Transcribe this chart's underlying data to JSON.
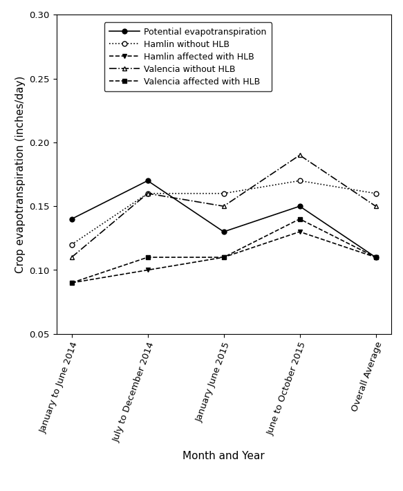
{
  "x_labels": [
    "January to June 2014",
    "July to December 2014",
    "January June 2015",
    "June to October 2015",
    "Overall Average"
  ],
  "series": {
    "Potential evapotranspiration": {
      "values": [
        0.14,
        0.17,
        0.13,
        0.15,
        0.11
      ],
      "linestyle": "-",
      "marker": "o",
      "markerfacecolor": "black",
      "color": "black",
      "linewidth": 1.2,
      "markersize": 5
    },
    "Hamlin without HLB": {
      "values": [
        0.12,
        0.16,
        0.16,
        0.17,
        0.16
      ],
      "linestyle": "dotted",
      "marker": "o",
      "markerfacecolor": "white",
      "color": "black",
      "linewidth": 1.2,
      "markersize": 5
    },
    "Hamlin affected with HLB": {
      "values": [
        0.09,
        0.1,
        0.11,
        0.13,
        0.11
      ],
      "linestyle": "--",
      "marker": "v",
      "markerfacecolor": "black",
      "color": "black",
      "linewidth": 1.2,
      "markersize": 5
    },
    "Valencia without HLB": {
      "values": [
        0.11,
        0.16,
        0.15,
        0.19,
        0.15
      ],
      "linestyle": "-.",
      "marker": "^",
      "markerfacecolor": "white",
      "color": "black",
      "linewidth": 1.2,
      "markersize": 5
    },
    "Valencia affected with HLB": {
      "values": [
        0.09,
        0.11,
        0.11,
        0.14,
        0.11
      ],
      "linestyle": "--",
      "marker": "s",
      "markerfacecolor": "black",
      "color": "black",
      "linewidth": 1.2,
      "markersize": 5
    }
  },
  "ylabel": "Crop evapotranspiration (inches/day)",
  "xlabel": "Month and Year",
  "ylim": [
    0.05,
    0.3
  ],
  "yticks": [
    0.05,
    0.1,
    0.15,
    0.2,
    0.25,
    0.3
  ],
  "background_color": "#ffffff",
  "legend_fontsize": 9,
  "axis_fontsize": 11,
  "tick_fontsize": 9.5
}
